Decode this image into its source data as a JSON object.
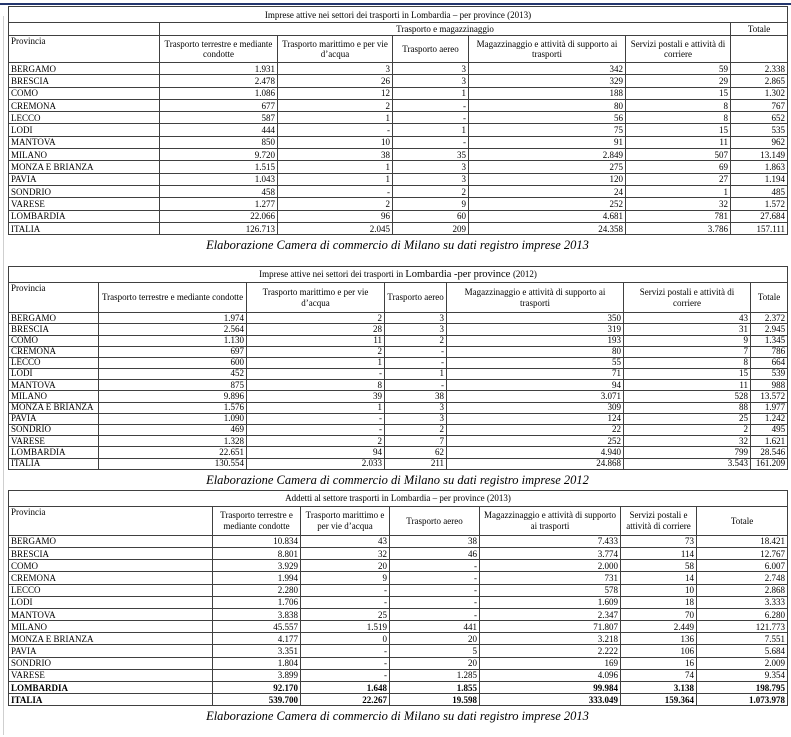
{
  "page": {
    "top_rule_color": "#23356d"
  },
  "tables": [
    {
      "title": "Imprese attive nei settori dei trasporti in Lombardia – per province (2013)",
      "group_header": "Trasporto e magazzinaggio",
      "totale_header": "Totale",
      "headers": [
        "Provincia",
        "Trasporto terrestre e mediante condotte",
        "Trasporto marittimo e per vie d’acqua",
        "Trasporto aereo",
        "Magazzinaggio e attività di supporto ai trasporti",
        "Servizi postali e attività di corriere"
      ],
      "rows": [
        [
          "BERGAMO",
          "1.931",
          "3",
          "3",
          "342",
          "59",
          "2.338"
        ],
        [
          "BRESCIA",
          "2.478",
          "26",
          "3",
          "329",
          "29",
          "2.865"
        ],
        [
          "COMO",
          "1.086",
          "12",
          "1",
          "188",
          "15",
          "1.302"
        ],
        [
          "CREMONA",
          "677",
          "2",
          "-",
          "80",
          "8",
          "767"
        ],
        [
          "LECCO",
          "587",
          "1",
          "-",
          "56",
          "8",
          "652"
        ],
        [
          "LODI",
          "444",
          "-",
          "1",
          "75",
          "15",
          "535"
        ],
        [
          "MANTOVA",
          "850",
          "10",
          "-",
          "91",
          "11",
          "962"
        ],
        [
          "MILANO",
          "9.720",
          "38",
          "35",
          "2.849",
          "507",
          "13.149"
        ],
        [
          "MONZA E BRIANZA",
          "1.515",
          "1",
          "3",
          "275",
          "69",
          "1.863"
        ],
        [
          "PAVIA",
          "1.043",
          "1",
          "3",
          "120",
          "27",
          "1.194"
        ],
        [
          "SONDRIO",
          "458",
          "-",
          "2",
          "24",
          "1",
          "485"
        ],
        [
          "VARESE",
          "1.277",
          "2",
          "9",
          "252",
          "32",
          "1.572"
        ],
        [
          "LOMBARDIA",
          "22.066",
          "96",
          "60",
          "4.681",
          "781",
          "27.684"
        ],
        [
          "ITALIA",
          "126.713",
          "2.045",
          "209",
          "24.358",
          "3.786",
          "157.111"
        ]
      ],
      "caption": "Elaborazione Camera di commercio di Milano su dati registro imprese 2013"
    },
    {
      "title_parts": [
        "Imprese attive nei settori dei trasporti in ",
        "Lombardia -per province ",
        "(2012)"
      ],
      "headers": [
        "Provincia",
        "Trasporto terrestre e mediante condotte",
        "Trasporto marittimo e per vie d’acqua",
        "Trasporto aereo",
        "Magazzinaggio e attività di supporto ai trasporti",
        "Servizi postali e attività di corriere",
        "Totale"
      ],
      "rows": [
        [
          "BERGAMO",
          "1.974",
          "2",
          "3",
          "350",
          "43",
          "2.372"
        ],
        [
          "BRESCIA",
          "2.564",
          "28",
          "3",
          "319",
          "31",
          "2.945"
        ],
        [
          "COMO",
          "1.130",
          "11",
          "2",
          "193",
          "9",
          "1.345"
        ],
        [
          "CREMONA",
          "697",
          "2",
          "-",
          "80",
          "7",
          "786"
        ],
        [
          "LECCO",
          "600",
          "1",
          "-",
          "55",
          "8",
          "664"
        ],
        [
          "LODI",
          "452",
          "-",
          "1",
          "71",
          "15",
          "539"
        ],
        [
          "MANTOVA",
          "875",
          "8",
          "-",
          "94",
          "11",
          "988"
        ],
        [
          "MILANO",
          "9.896",
          "39",
          "38",
          "3.071",
          "528",
          "13.572"
        ],
        [
          "MONZA E BRIANZA",
          "1.576",
          "1",
          "3",
          "309",
          "88",
          "1.977"
        ],
        [
          "PAVIA",
          "1.090",
          "-",
          "3",
          "124",
          "25",
          "1.242"
        ],
        [
          "SONDRIO",
          "469",
          "-",
          "2",
          "22",
          "2",
          "495"
        ],
        [
          "VARESE",
          "1.328",
          "2",
          "7",
          "252",
          "32",
          "1.621"
        ],
        [
          "LOMBARDIA",
          "22.651",
          "94",
          "62",
          "4.940",
          "799",
          "28.546"
        ],
        [
          "ITALIA",
          "130.554",
          "2.033",
          "211",
          "24.868",
          "3.543",
          "161.209"
        ]
      ],
      "caption": "Elaborazione Camera di commercio di Milano su dati registro imprese 2012"
    },
    {
      "title": "Addetti al settore trasporti in Lombardia – per province (2013)",
      "headers": [
        "Provincia",
        "Trasporto terrestre e mediante condotte",
        "Trasporto marittimo e per vie d’acqua",
        "Trasporto aereo",
        "Magazzinaggio e attività di supporto ai trasporti",
        "Servizi postali e attività di corriere",
        "Totale"
      ],
      "bold_total_col": true,
      "bold_rows": [
        12,
        13
      ],
      "rows": [
        [
          "BERGAMO",
          "10.834",
          "43",
          "38",
          "7.433",
          "73",
          "18.421"
        ],
        [
          "BRESCIA",
          "8.801",
          "32",
          "46",
          "3.774",
          "114",
          "12.767"
        ],
        [
          "COMO",
          "3.929",
          "20",
          "-",
          "2.000",
          "58",
          "6.007"
        ],
        [
          "CREMONA",
          "1.994",
          "9",
          "-",
          "731",
          "14",
          "2.748"
        ],
        [
          "LECCO",
          "2.280",
          "-",
          "-",
          "578",
          "10",
          "2.868"
        ],
        [
          "LODI",
          "1.706",
          "-",
          "-",
          "1.609",
          "18",
          "3.333"
        ],
        [
          "MANTOVA",
          "3.838",
          "25",
          "-",
          "2.347",
          "70",
          "6.280"
        ],
        [
          "MILANO",
          "45.557",
          "1.519",
          "441",
          "71.807",
          "2.449",
          "121.773"
        ],
        [
          "MONZA E BRIANZA",
          "4.177",
          "0",
          "20",
          "3.218",
          "136",
          "7.551"
        ],
        [
          "PAVIA",
          "3.351",
          "-",
          "5",
          "2.222",
          "106",
          "5.684"
        ],
        [
          "SONDRIO",
          "1.804",
          "-",
          "20",
          "169",
          "16",
          "2.009"
        ],
        [
          "VARESE",
          "3.899",
          "-",
          "1.285",
          "4.096",
          "74",
          "9.354"
        ],
        [
          "LOMBARDIA",
          "92.170",
          "1.648",
          "1.855",
          "99.984",
          "3.138",
          "198.795"
        ],
        [
          "ITALIA",
          "539.700",
          "22.267",
          "19.598",
          "333.049",
          "159.364",
          "1.073.978"
        ]
      ],
      "caption": "Elaborazione Camera di commercio di Milano su dati registro imprese 2013"
    }
  ]
}
